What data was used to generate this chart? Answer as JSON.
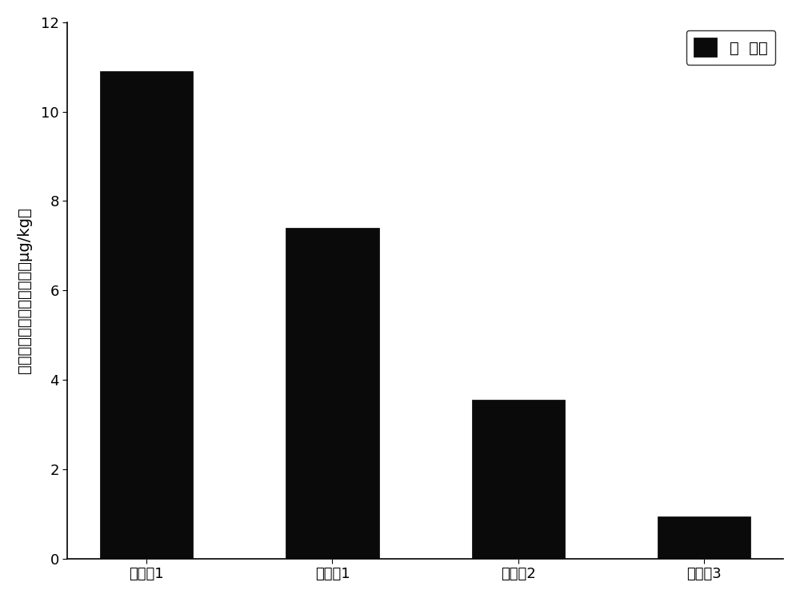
{
  "categories": [
    "对比例1",
    "实施例1",
    "实施例2",
    "实施例3"
  ],
  "values": [
    10.9,
    7.4,
    3.55,
    0.95
  ],
  "bar_color": "#0a0a0a",
  "bar_edge_color": "#000000",
  "ylabel": "自由溶解态的氟虫腈浓度（μg/kg）",
  "ylim": [
    0,
    12
  ],
  "yticks": [
    0,
    2,
    4,
    6,
    8,
    10,
    12
  ],
  "legend_label": "氟  虫腈",
  "background_color": "#ffffff",
  "bar_width": 0.5,
  "title_fontsize": 14,
  "tick_fontsize": 13,
  "ylabel_fontsize": 14,
  "legend_fontsize": 14
}
